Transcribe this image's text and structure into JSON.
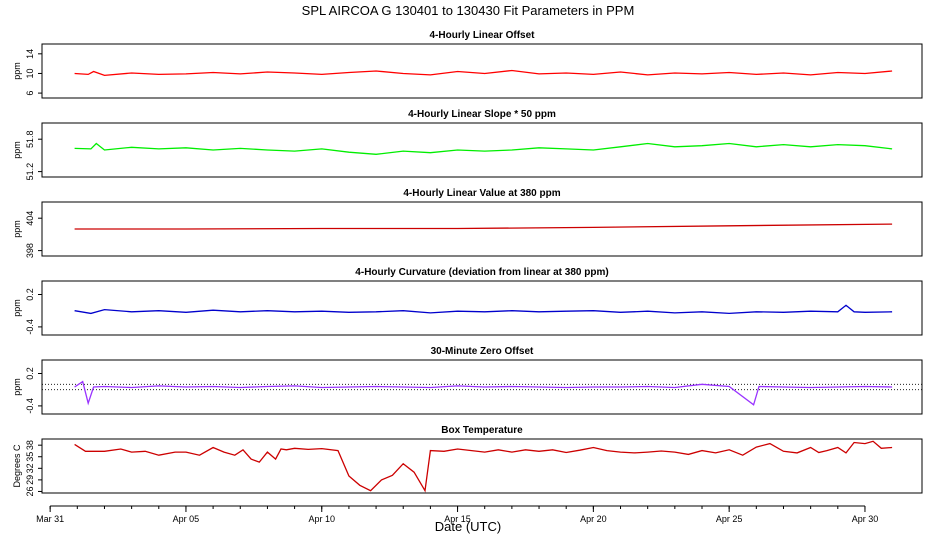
{
  "chart_data": {
    "title": "SPL   AIRCOA G   130401 to 130430   Fit Parameters in PPM",
    "xlabel": "Date (UTC)",
    "xticks": [
      "Mar 31",
      "Apr 05",
      "Apr 10",
      "Apr 15",
      "Apr 20",
      "Apr 25",
      "Apr 30"
    ],
    "xtick_days": [
      0,
      5,
      10,
      15,
      20,
      25,
      30
    ],
    "xlim": [
      -0.3,
      32.1
    ],
    "data_start_day": 0.9,
    "data_end_day": 31.0,
    "panels": [
      {
        "title": "4-Hourly Linear Offset",
        "ylabel": "ppm",
        "ylim": [
          5,
          16
        ],
        "yticks": [
          "6",
          "10",
          "14"
        ],
        "ytick_values": [
          6,
          10,
          14
        ],
        "color": "#ff0000",
        "type": "line",
        "x": [
          0.9,
          1.4,
          1.6,
          2.0,
          3.0,
          4.0,
          5.0,
          6.0,
          7.0,
          8.0,
          9.0,
          10.0,
          11.0,
          12.0,
          13.0,
          14.0,
          15.0,
          16.0,
          17.0,
          18.0,
          19.0,
          20.0,
          21.0,
          22.0,
          23.0,
          24.0,
          25.0,
          26.0,
          27.0,
          28.0,
          29.0,
          30.0,
          31.0
        ],
        "y": [
          10.0,
          9.8,
          10.4,
          9.6,
          10.1,
          9.8,
          9.9,
          10.2,
          9.9,
          10.3,
          10.1,
          9.8,
          10.2,
          10.5,
          10.0,
          9.7,
          10.4,
          10.0,
          10.6,
          9.9,
          10.1,
          9.8,
          10.3,
          9.7,
          10.1,
          9.9,
          10.2,
          9.8,
          10.1,
          9.7,
          10.2,
          10.0,
          10.5
        ]
      },
      {
        "title": "4-Hourly Linear Slope * 50 ppm",
        "ylabel": "ppm",
        "ylim": [
          51.1,
          52.1
        ],
        "yticks": [
          "51.2",
          "51.8"
        ],
        "ytick_values": [
          51.2,
          51.8
        ],
        "color": "#00ee00",
        "type": "line",
        "x": [
          0.9,
          1.5,
          1.7,
          2.0,
          3.0,
          4.0,
          5.0,
          6.0,
          7.0,
          8.0,
          9.0,
          10.0,
          11.0,
          12.0,
          13.0,
          14.0,
          15.0,
          16.0,
          17.0,
          18.0,
          19.0,
          20.0,
          21.0,
          22.0,
          23.0,
          24.0,
          25.0,
          26.0,
          27.0,
          28.0,
          29.0,
          30.0,
          31.0
        ],
        "y": [
          51.63,
          51.62,
          51.72,
          51.6,
          51.65,
          51.62,
          51.64,
          51.6,
          51.63,
          51.6,
          51.58,
          51.62,
          51.56,
          51.52,
          51.58,
          51.55,
          51.6,
          51.58,
          51.6,
          51.64,
          51.62,
          51.6,
          51.66,
          51.72,
          51.66,
          51.68,
          51.72,
          51.66,
          51.7,
          51.66,
          51.7,
          51.68,
          51.62
        ]
      },
      {
        "title": "4-Hourly Linear Value at 380 ppm",
        "ylabel": "ppm",
        "ylim": [
          397,
          407
        ],
        "yticks": [
          "398",
          "404"
        ],
        "ytick_values": [
          398,
          404
        ],
        "color": "#cc0000",
        "type": "line",
        "x": [
          0.9,
          5.0,
          10.0,
          15.0,
          20.0,
          25.0,
          31.0
        ],
        "y": [
          402.0,
          402.0,
          402.1,
          402.1,
          402.3,
          402.6,
          402.9
        ]
      },
      {
        "title": "4-Hourly Curvature (deviation from linear at 380 ppm)",
        "ylabel": "ppm",
        "ylim": [
          -0.55,
          0.45
        ],
        "yticks": [
          "-0.4",
          "0.2"
        ],
        "ytick_values": [
          -0.4,
          0.2
        ],
        "color": "#0000cc",
        "type": "line",
        "x": [
          0.9,
          1.5,
          2.0,
          3.0,
          4.0,
          5.0,
          6.0,
          7.0,
          8.0,
          9.0,
          10.0,
          11.0,
          12.0,
          13.0,
          14.0,
          15.0,
          16.0,
          17.0,
          18.0,
          19.0,
          20.0,
          21.0,
          22.0,
          23.0,
          24.0,
          25.0,
          26.0,
          27.0,
          28.0,
          29.0,
          29.3,
          29.6,
          30.0,
          31.0
        ],
        "y": [
          -0.1,
          -0.15,
          -0.08,
          -0.12,
          -0.1,
          -0.13,
          -0.09,
          -0.12,
          -0.1,
          -0.12,
          -0.11,
          -0.13,
          -0.12,
          -0.1,
          -0.14,
          -0.11,
          -0.12,
          -0.1,
          -0.12,
          -0.11,
          -0.1,
          -0.13,
          -0.11,
          -0.14,
          -0.12,
          -0.15,
          -0.12,
          -0.13,
          -0.11,
          -0.12,
          0.0,
          -0.12,
          -0.13,
          -0.12
        ]
      },
      {
        "title": "30-Minute Zero Offset",
        "ylabel": "ppm",
        "ylim": [
          -0.55,
          0.45
        ],
        "yticks": [
          "-0.4",
          "0.2"
        ],
        "ytick_values": [
          -0.4,
          0.2
        ],
        "color": "#9933ff",
        "type": "line",
        "reference_lines": [
          0.0,
          -0.1
        ],
        "x": [
          0.9,
          1.2,
          1.4,
          1.6,
          2.0,
          3.0,
          4.0,
          5.0,
          6.0,
          7.0,
          8.0,
          9.0,
          10.0,
          11.0,
          12.0,
          13.0,
          14.0,
          15.0,
          16.0,
          17.0,
          18.0,
          19.0,
          20.0,
          21.0,
          22.0,
          23.0,
          24.0,
          25.0,
          25.9,
          26.1,
          27.0,
          28.0,
          29.0,
          30.0,
          31.0
        ],
        "y": [
          -0.05,
          0.05,
          -0.35,
          -0.05,
          -0.04,
          -0.06,
          -0.03,
          -0.05,
          -0.04,
          -0.06,
          -0.04,
          -0.03,
          -0.06,
          -0.05,
          -0.04,
          -0.05,
          -0.06,
          -0.03,
          -0.05,
          -0.04,
          -0.05,
          -0.06,
          -0.05,
          -0.05,
          -0.04,
          -0.06,
          0.0,
          -0.04,
          -0.38,
          -0.04,
          -0.05,
          -0.06,
          -0.05,
          -0.04,
          -0.05
        ]
      },
      {
        "title": "Box Temperature",
        "ylabel": "Degrees C",
        "ylim": [
          25.6,
          39.6
        ],
        "yticks": [
          "26",
          "29",
          "32",
          "35",
          "38"
        ],
        "ytick_values": [
          26,
          29,
          32,
          35,
          38
        ],
        "color": "#cc0000",
        "type": "line",
        "x": [
          0.9,
          1.3,
          2.0,
          2.6,
          3.0,
          3.5,
          4.0,
          4.6,
          5.0,
          5.5,
          6.0,
          6.4,
          6.8,
          7.1,
          7.4,
          7.7,
          8.0,
          8.3,
          8.5,
          8.7,
          9.0,
          9.5,
          10.0,
          10.6,
          11.0,
          11.4,
          11.8,
          12.2,
          12.6,
          13.0,
          13.4,
          13.8,
          14.0,
          14.5,
          15.0,
          16.0,
          16.5,
          17.0,
          17.5,
          18.0,
          18.5,
          19.0,
          19.5,
          20.0,
          20.5,
          21.0,
          21.5,
          22.0,
          22.5,
          23.0,
          23.5,
          24.0,
          24.5,
          25.0,
          25.5,
          26.0,
          26.5,
          27.0,
          27.5,
          28.0,
          28.3,
          28.6,
          29.0,
          29.3,
          29.6,
          30.0,
          30.3,
          30.6,
          31.0
        ],
        "y": [
          38.2,
          36.4,
          36.4,
          37.0,
          36.2,
          36.4,
          35.4,
          36.2,
          36.2,
          35.4,
          37.4,
          36.2,
          35.4,
          36.8,
          34.4,
          33.6,
          36.2,
          34.4,
          37.0,
          36.8,
          37.2,
          36.9,
          37.1,
          36.6,
          30.0,
          27.6,
          26.2,
          29.0,
          30.2,
          33.2,
          31.0,
          26.2,
          36.6,
          36.4,
          37.0,
          36.2,
          36.8,
          36.2,
          36.8,
          36.4,
          36.8,
          36.1,
          36.7,
          37.4,
          36.6,
          36.2,
          36.0,
          36.2,
          36.5,
          36.2,
          35.6,
          36.6,
          36.0,
          36.8,
          35.4,
          37.5,
          38.4,
          36.4,
          36.0,
          37.4,
          36.1,
          36.6,
          37.4,
          36.0,
          38.7,
          38.4,
          39.0,
          37.2,
          37.4
        ]
      }
    ]
  }
}
